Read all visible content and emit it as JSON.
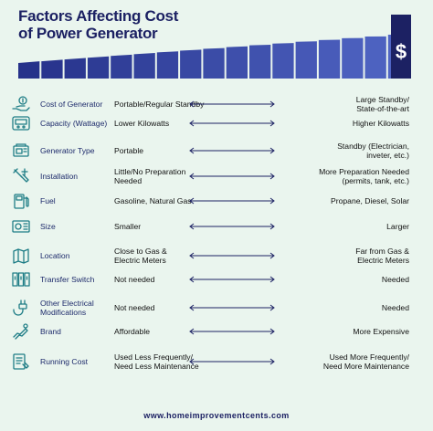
{
  "header": {
    "title_line1": "Factors Affecting Cost",
    "title_line2": "of Power Generator",
    "dollar_symbol": "$"
  },
  "colors": {
    "background": "#eaf5ee",
    "navy": "#1c2163",
    "bar_dark": "#26328a",
    "bar_light": "#5065c4",
    "icon_teal": "#1f7d86"
  },
  "rows": [
    {
      "icon": "hand-coin-icon",
      "factor": "Cost of Generator",
      "low": "Portable/Regular Standby",
      "high": "Large Standby/\nState-of-the-art"
    },
    {
      "icon": "meter-icon",
      "factor": "Capacity (Wattage)",
      "low": "Lower Kilowatts",
      "high": "Higher Kilowatts"
    },
    {
      "icon": "generator-icon",
      "factor": "Generator Type",
      "low": "Portable",
      "high": "Standby (Electrician,\ninveter, etc.)"
    },
    {
      "icon": "wrench-tools-icon",
      "factor": "Installation",
      "low": "Little/No Preparation\nNeeded",
      "high": "More Preparation Needed\n(permits, tank, etc.)"
    },
    {
      "icon": "fuel-pump-icon",
      "factor": "Fuel",
      "low": "Gasoline, Natural Gas",
      "high": "Propane, Diesel, Solar"
    },
    {
      "icon": "generator-size-icon",
      "factor": "Size",
      "low": "Smaller",
      "high": "Larger"
    },
    {
      "icon": "location-map-icon",
      "factor": "Location",
      "low": "Close to Gas &\nElectric Meters",
      "high": "Far from Gas &\nElectric Meters"
    },
    {
      "icon": "transfer-switch-icon",
      "factor": "Transfer Switch",
      "low": "Not needed",
      "high": "Needed"
    },
    {
      "icon": "electric-plug-icon",
      "factor": "Other Electrical\nModifications",
      "low": "Not needed",
      "high": "Needed"
    },
    {
      "icon": "brand-hand-icon",
      "factor": "Brand",
      "low": "Affordable",
      "high": "More Expensive"
    },
    {
      "icon": "maintenance-icon",
      "factor": "Running Cost",
      "low": "Used Less Frequently/\nNeed Less Maintenance",
      "high": "Used More Frequently/\nNeed More Maintenance"
    }
  ],
  "footer": {
    "url": "www.homeimprovementcents.com"
  }
}
